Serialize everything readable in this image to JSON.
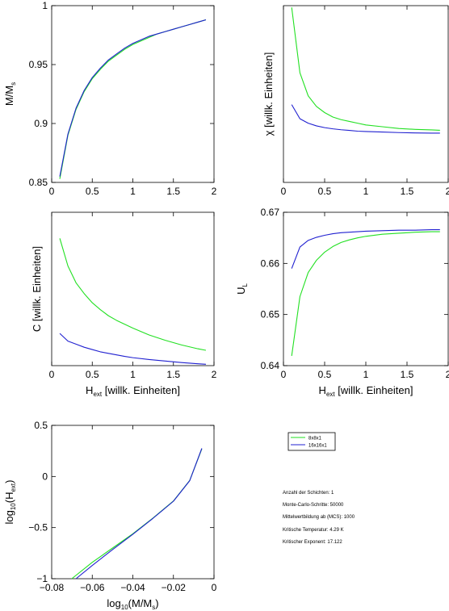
{
  "colors": {
    "s8": "#22e022",
    "s16": "#2020d0",
    "axis": "#000000"
  },
  "legend": [
    {
      "name": "8x8x1",
      "color": "#22e022"
    },
    {
      "name": "16x16x1",
      "color": "#2020d0"
    }
  ],
  "info_lines": [
    "Anzahl der Schichten: 1",
    "Monte-Carlo-Schritte: 50000",
    "Mittelwertbildung ab (MCS): 1000",
    "Kritische Temperatur: 4.29 K",
    "Kritischer Exponent: 17.122"
  ],
  "chart_data": [
    {
      "id": "magnetization",
      "type": "line",
      "ylabel_main": "M/M",
      "ylabel_sub": "s",
      "xlim": [
        0,
        2
      ],
      "ylim": [
        0.85,
        1
      ],
      "xticks": [
        0,
        0.5,
        1,
        1.5,
        2
      ],
      "xticklabels": [
        "0",
        "0.5",
        "1",
        "1.5",
        "2"
      ],
      "yticks": [
        0.85,
        0.9,
        0.95,
        1
      ],
      "yticklabels": [
        "0.85",
        "0.9",
        "0.95",
        "1"
      ],
      "series": [
        {
          "key": "s8",
          "color": "#22e022",
          "x": [
            0.1,
            0.2,
            0.3,
            0.4,
            0.5,
            0.6,
            0.7,
            0.8,
            0.9,
            1.0,
            1.1,
            1.2,
            1.3,
            1.4,
            1.5,
            1.6,
            1.7,
            1.8,
            1.9
          ],
          "y": [
            0.853,
            0.89,
            0.912,
            0.927,
            0.938,
            0.946,
            0.953,
            0.958,
            0.963,
            0.967,
            0.97,
            0.973,
            0.976,
            0.978,
            0.98,
            0.982,
            0.984,
            0.986,
            0.988
          ]
        },
        {
          "key": "s16",
          "color": "#2020d0",
          "x": [
            0.1,
            0.2,
            0.3,
            0.4,
            0.5,
            0.6,
            0.7,
            0.8,
            0.9,
            1.0,
            1.1,
            1.2,
            1.3,
            1.4,
            1.5,
            1.6,
            1.7,
            1.8,
            1.9
          ],
          "y": [
            0.855,
            0.891,
            0.913,
            0.928,
            0.939,
            0.947,
            0.954,
            0.959,
            0.964,
            0.968,
            0.971,
            0.974,
            0.976,
            0.978,
            0.98,
            0.982,
            0.984,
            0.986,
            0.988
          ]
        }
      ]
    },
    {
      "id": "susceptibility",
      "type": "line",
      "ylabel_main": "χ [willk. Einheiten]",
      "xlim": [
        0,
        2
      ],
      "ylim": [
        0,
        1
      ],
      "xticks": [
        0,
        0.5,
        1,
        1.5,
        2
      ],
      "xticklabels": [
        "0",
        "0.5",
        "1",
        "1.5",
        "2"
      ],
      "yticks": [],
      "yticklabels": [],
      "series": [
        {
          "key": "s8",
          "color": "#22e022",
          "x": [
            0.1,
            0.2,
            0.3,
            0.4,
            0.5,
            0.6,
            0.7,
            0.8,
            0.9,
            1.0,
            1.2,
            1.4,
            1.6,
            1.8,
            1.9
          ],
          "y": [
            0.99,
            0.62,
            0.49,
            0.43,
            0.395,
            0.37,
            0.355,
            0.345,
            0.335,
            0.325,
            0.315,
            0.305,
            0.3,
            0.297,
            0.295
          ]
        },
        {
          "key": "s16",
          "color": "#2020d0",
          "x": [
            0.1,
            0.2,
            0.3,
            0.4,
            0.5,
            0.6,
            0.7,
            0.8,
            0.9,
            1.0,
            1.2,
            1.4,
            1.6,
            1.8,
            1.9
          ],
          "y": [
            0.44,
            0.36,
            0.335,
            0.32,
            0.31,
            0.303,
            0.298,
            0.294,
            0.29,
            0.288,
            0.285,
            0.282,
            0.28,
            0.279,
            0.279
          ]
        }
      ]
    },
    {
      "id": "specific-heat",
      "type": "line",
      "ylabel_main": "C [willk. Einheiten]",
      "xlabel_main": "H",
      "xlabel_sub": "ext",
      "xlabel_rest": " [willk. Einheiten]",
      "xlim": [
        0,
        2
      ],
      "ylim": [
        0,
        1
      ],
      "xticks": [
        0,
        0.5,
        1,
        1.5,
        2
      ],
      "xticklabels": [
        "0",
        "0.5",
        "1",
        "1.5",
        "2"
      ],
      "yticks": [],
      "yticklabels": [],
      "series": [
        {
          "key": "s8",
          "color": "#22e022",
          "x": [
            0.1,
            0.2,
            0.3,
            0.4,
            0.5,
            0.6,
            0.7,
            0.8,
            0.9,
            1.0,
            1.2,
            1.4,
            1.6,
            1.8,
            1.9
          ],
          "y": [
            0.83,
            0.65,
            0.54,
            0.47,
            0.41,
            0.365,
            0.325,
            0.295,
            0.27,
            0.245,
            0.2,
            0.165,
            0.135,
            0.11,
            0.1
          ]
        },
        {
          "key": "s16",
          "color": "#2020d0",
          "x": [
            0.1,
            0.2,
            0.3,
            0.4,
            0.5,
            0.6,
            0.7,
            0.8,
            0.9,
            1.0,
            1.2,
            1.4,
            1.6,
            1.8,
            1.9
          ],
          "y": [
            0.21,
            0.16,
            0.14,
            0.12,
            0.105,
            0.09,
            0.08,
            0.07,
            0.06,
            0.052,
            0.04,
            0.03,
            0.02,
            0.012,
            0.009
          ]
        }
      ]
    },
    {
      "id": "binder-cumulant",
      "type": "line",
      "ylabel_main": "U",
      "ylabel_sub": "L",
      "xlabel_main": "H",
      "xlabel_sub": "ext",
      "xlabel_rest": " [willk. Einheiten]",
      "xlim": [
        0,
        2
      ],
      "ylim": [
        0.64,
        0.67
      ],
      "xticks": [
        0,
        0.5,
        1,
        1.5,
        2
      ],
      "xticklabels": [
        "0",
        "0.5",
        "1",
        "1.5",
        "2"
      ],
      "yticks": [
        0.64,
        0.65,
        0.66,
        0.67
      ],
      "yticklabels": [
        "0.64",
        "0.65",
        "0.66",
        "0.67"
      ],
      "series": [
        {
          "key": "s8",
          "color": "#22e022",
          "x": [
            0.1,
            0.2,
            0.3,
            0.4,
            0.5,
            0.6,
            0.7,
            0.8,
            0.9,
            1.0,
            1.2,
            1.4,
            1.6,
            1.8,
            1.9
          ],
          "y": [
            0.6419,
            0.6535,
            0.6582,
            0.6606,
            0.6622,
            0.6633,
            0.6641,
            0.6646,
            0.665,
            0.6653,
            0.6657,
            0.6659,
            0.6661,
            0.6662,
            0.6662
          ]
        },
        {
          "key": "s16",
          "color": "#2020d0",
          "x": [
            0.1,
            0.2,
            0.3,
            0.4,
            0.5,
            0.6,
            0.7,
            0.8,
            0.9,
            1.0,
            1.2,
            1.4,
            1.6,
            1.8,
            1.9
          ],
          "y": [
            0.659,
            0.6632,
            0.6645,
            0.6651,
            0.6655,
            0.6658,
            0.666,
            0.6661,
            0.6662,
            0.6663,
            0.6664,
            0.6665,
            0.6665,
            0.6666,
            0.6666
          ]
        }
      ]
    },
    {
      "id": "log-log",
      "type": "line",
      "ylabel_pre": "log",
      "ylabel_sub": "10",
      "ylabel_post": "(H",
      "ylabel_sub2": "ext",
      "ylabel_end": ")",
      "xlabel_main": "log",
      "xlabel_sub": "10",
      "xlabel_rest": "(M/M",
      "xlabel_sub2": "s",
      "xlabel_end": ")",
      "xlim": [
        -0.08,
        0
      ],
      "ylim": [
        -1,
        0.5
      ],
      "xticks": [
        -0.08,
        -0.06,
        -0.04,
        -0.02,
        0
      ],
      "xticklabels": [
        "−0.08",
        "−0.06",
        "−0.04",
        "−0.02",
        "0"
      ],
      "yticks": [
        -1,
        -0.5,
        0,
        0.5
      ],
      "yticklabels": [
        "−1",
        "−0.5",
        "0",
        "0.5"
      ],
      "series": [
        {
          "key": "s8",
          "color": "#22e022",
          "x": [
            -0.0701,
            -0.06,
            -0.05,
            -0.04,
            -0.03,
            -0.02,
            -0.012,
            -0.006
          ],
          "y": [
            -1.0,
            -0.84,
            -0.7,
            -0.56,
            -0.405,
            -0.24,
            -0.04,
            0.27
          ]
        },
        {
          "key": "s16",
          "color": "#2020d0",
          "x": [
            -0.068,
            -0.06,
            -0.05,
            -0.04,
            -0.03,
            -0.02,
            -0.012,
            -0.006
          ],
          "y": [
            -1.0,
            -0.87,
            -0.715,
            -0.565,
            -0.408,
            -0.242,
            -0.042,
            0.275
          ]
        }
      ]
    }
  ]
}
